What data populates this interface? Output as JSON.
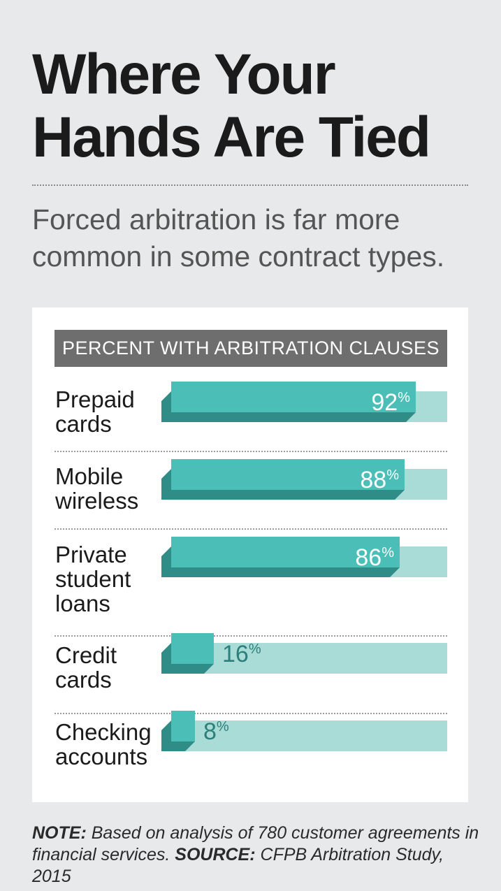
{
  "title": "Where Your\nHands Are Tied",
  "subtitle": "Forced arbitration is far more\ncommon in some contract types.",
  "chart_data": {
    "type": "bar",
    "orientation": "horizontal",
    "title": "PERCENT WITH ARBITRATION CLAUSES",
    "categories": [
      "Prepaid\ncards",
      "Mobile\nwireless",
      "Private\nstudent\nloans",
      "Credit\ncards",
      "Checking\naccounts"
    ],
    "values": [
      92,
      88,
      86,
      16,
      8
    ],
    "value_labels": [
      "92",
      "88",
      "86",
      "16",
      "8"
    ],
    "unit": "%",
    "xlim": [
      0,
      100
    ],
    "grid": false,
    "colors": {
      "bar": "#4bbfb7",
      "bar_shadow": "#2f8c86",
      "track": "#a9dcd7",
      "header": "#6e6e6e"
    }
  },
  "note": {
    "label": "NOTE:",
    "text": "Based on analysis of 780 customer agreements in financial services.",
    "source_label": "SOURCE:",
    "source_text": "CFPB Arbitration Study, 2015"
  }
}
